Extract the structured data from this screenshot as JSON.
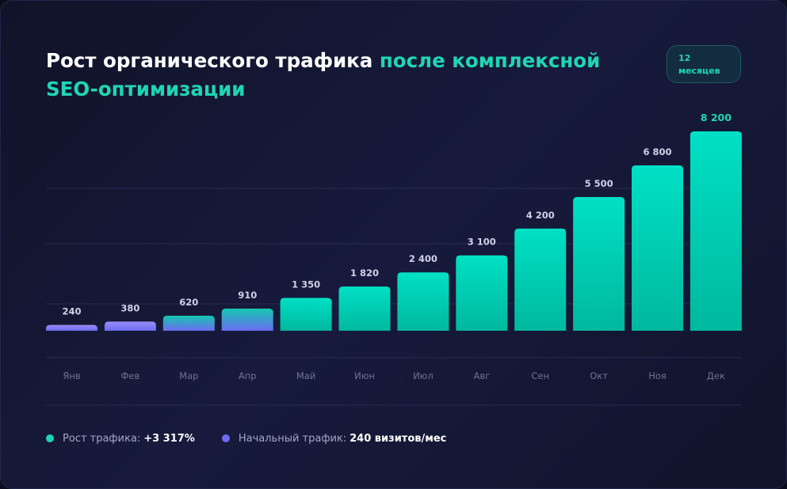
{
  "header": {
    "title_main": "Рост органического трафика",
    "title_accent": "после комплексной SEO-оптимизации",
    "badge": "12 месяцев"
  },
  "colors": {
    "accent": "#1fd6b4",
    "initial": "#6c6cf0",
    "bar_teal_top": "#00e0c4",
    "bar_teal_bottom": "#00b89f"
  },
  "chart_data": {
    "type": "bar",
    "title": "Рост органического трафика после комплексной SEO-оптимизации",
    "categories": [
      "Янв",
      "Фев",
      "Мар",
      "Апр",
      "Май",
      "Июн",
      "Июл",
      "Авг",
      "Сен",
      "Окт",
      "Ноя",
      "Дек"
    ],
    "values": [
      240,
      380,
      620,
      910,
      1350,
      1820,
      2400,
      3100,
      4200,
      5500,
      6800,
      8200
    ],
    "value_labels": [
      "240",
      "380",
      "620",
      "910",
      "1 350",
      "1 820",
      "2 400",
      "3 100",
      "4 200",
      "5 500",
      "6 800",
      "8 200"
    ],
    "initial_months": 4,
    "xlabel": "",
    "ylabel": "",
    "ylim": [
      0,
      8200
    ],
    "grid": true
  },
  "legend": {
    "items": [
      {
        "label": "Рост трафика:",
        "value": "+3 317%",
        "color": "#1fd6b4"
      },
      {
        "label": "Начальный трафик:",
        "value": "240 визитов/мес",
        "color": "#6c6cf0"
      }
    ]
  }
}
